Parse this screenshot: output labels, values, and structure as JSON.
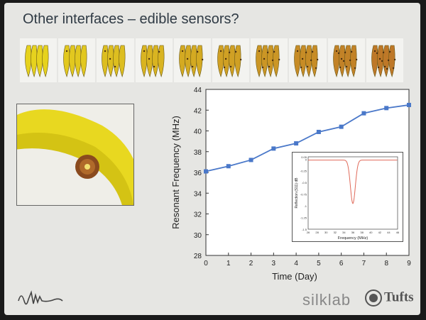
{
  "slide": {
    "title": "Other interfaces – edible sensors?",
    "banana_count": 10,
    "logos": {
      "left": "squiggle-logo-icon",
      "silklab": "silklab",
      "tufts": "Tufts"
    }
  },
  "chart_data": [
    {
      "type": "line",
      "xlabel": "Time (Day)",
      "ylabel": "Resonant Frequency (MHz)",
      "xlim": [
        0,
        9
      ],
      "ylim": [
        28,
        44
      ],
      "xticks": [
        0,
        1,
        2,
        3,
        4,
        5,
        6,
        7,
        8,
        9
      ],
      "yticks": [
        28,
        30,
        32,
        34,
        36,
        38,
        40,
        42,
        44
      ],
      "x": [
        0,
        1,
        2,
        3,
        4,
        5,
        6,
        7,
        8,
        9
      ],
      "y": [
        36.1,
        36.6,
        37.2,
        38.3,
        38.8,
        39.9,
        40.4,
        41.7,
        42.2,
        42.5
      ],
      "color": "#4a78c9",
      "grid": false
    },
    {
      "type": "line",
      "xlabel": "Frequency (MHz)",
      "ylabel": "Reflection (S11) dB",
      "xlim": [
        26,
        46
      ],
      "ylim": [
        -1.5,
        0.05
      ],
      "xticks": [
        26,
        28,
        30,
        32,
        34,
        36,
        38,
        40,
        42,
        44,
        46
      ],
      "yticks": [
        "0.05",
        "0",
        "-0.25",
        "-0.5",
        "-0.75",
        "-1",
        "-1.25",
        "-1.5"
      ],
      "dip_center": 36,
      "dip_min": -0.95,
      "baseline": -0.02,
      "color": "#e06a5a"
    }
  ]
}
